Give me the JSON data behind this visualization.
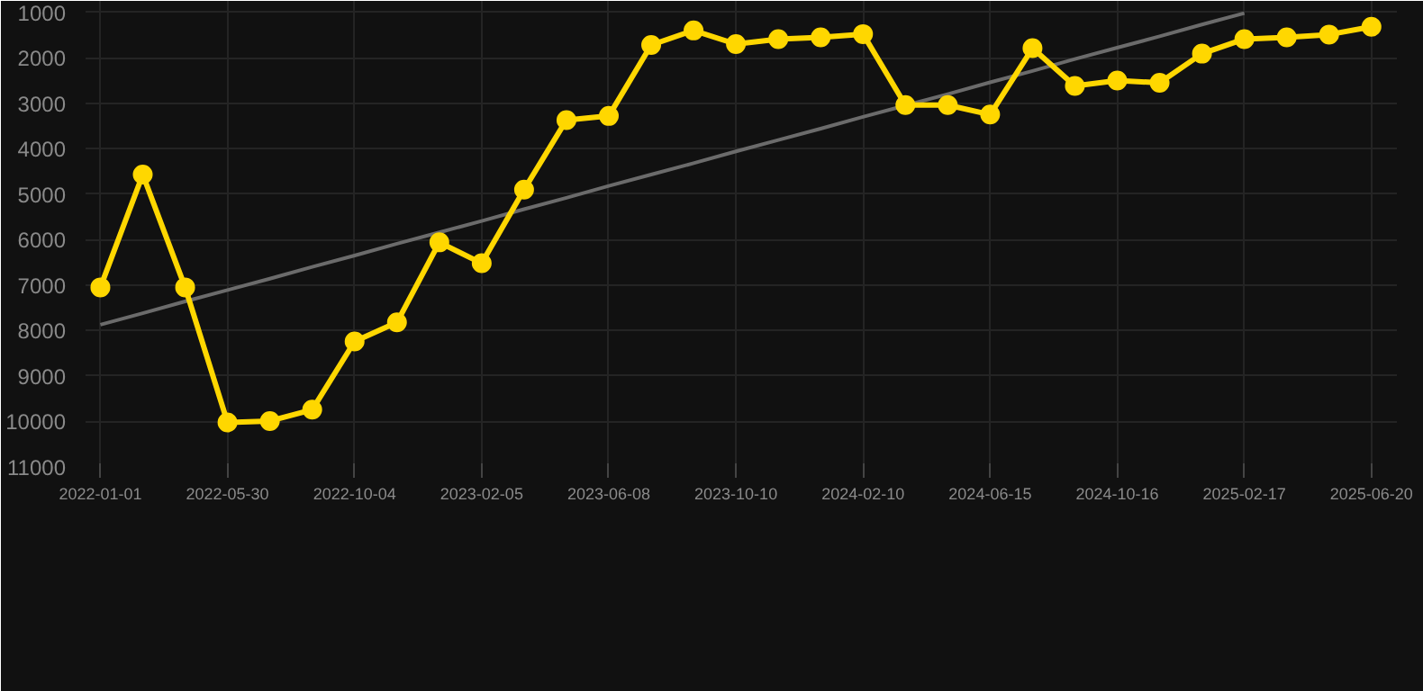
{
  "chart_data": {
    "type": "line",
    "categories": [
      "2022-01-01",
      null,
      null,
      "2022-05-30",
      null,
      null,
      "2022-10-04",
      null,
      null,
      "2023-02-05",
      null,
      null,
      "2023-06-08",
      null,
      null,
      "2023-10-10",
      null,
      null,
      "2024-02-10",
      null,
      null,
      "2024-06-15",
      null,
      null,
      "2024-10-16",
      null,
      null,
      "2025-02-17",
      null,
      null,
      "2025-06-20"
    ],
    "series": [
      {
        "color": "#ffd700",
        "marker": "circle",
        "values": [
          7050,
          4570,
          7050,
          10020,
          9990,
          9740,
          8240,
          7820,
          6060,
          6520,
          4900,
          3370,
          3280,
          1720,
          1400,
          1700,
          1590,
          1550,
          1480,
          3040,
          3040,
          3250,
          1790,
          2620,
          2500,
          2550,
          1910,
          1590,
          1550,
          1490,
          1320
        ]
      },
      {
        "color": "#6b6b6b",
        "marker": "none",
        "values": [
          7870,
          7620,
          7360,
          7110,
          6860,
          6600,
          6350,
          6090,
          5840,
          5590,
          5330,
          5080,
          4820,
          4570,
          4320,
          4060,
          3810,
          3560,
          3300,
          3050,
          2800,
          2540,
          2290,
          2030,
          1780,
          1530,
          1270,
          1020,
          null,
          null,
          null
        ]
      }
    ],
    "ylim": [
      11000,
      750
    ],
    "yticks": [
      1000,
      2000,
      3000,
      4000,
      5000,
      6000,
      7000,
      8000,
      9000,
      10000,
      11000
    ],
    "grid": true
  }
}
